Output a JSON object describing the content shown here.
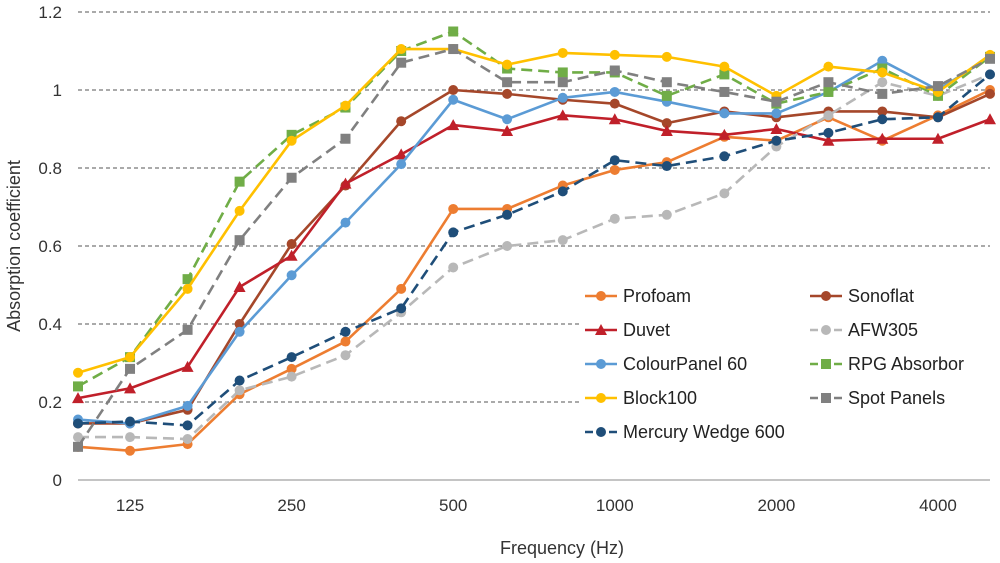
{
  "chart_data": {
    "type": "line",
    "xlabel": "Frequency (Hz)",
    "ylabel": "Absorption coefficient",
    "x_scale": "log",
    "x": [
      100,
      125,
      160,
      200,
      250,
      315,
      400,
      500,
      630,
      800,
      1000,
      1250,
      1600,
      2000,
      2500,
      3150,
      4000,
      5000
    ],
    "xticks": [
      125,
      250,
      500,
      1000,
      2000,
      4000
    ],
    "xtick_labels": [
      "125",
      "250",
      "500",
      "1000",
      "2000",
      "4000"
    ],
    "ylim": [
      0,
      1.2
    ],
    "yticks": [
      0,
      0.2,
      0.4,
      0.6,
      0.8,
      1,
      1.2
    ],
    "ytick_labels": [
      "0",
      "0.2",
      "0.4",
      "0.6",
      "0.8",
      "1",
      "1.2"
    ],
    "grid": "horizontal-dashed",
    "legend_position": "bottom-right",
    "series": [
      {
        "name": "Profoam",
        "color": "#ed7d31",
        "dash": "solid",
        "marker": "circle",
        "values": [
          0.085,
          0.075,
          0.092,
          0.22,
          0.285,
          0.355,
          0.49,
          0.695,
          0.695,
          0.755,
          0.795,
          0.815,
          0.88,
          0.87,
          0.93,
          0.87,
          0.935,
          1.0
        ]
      },
      {
        "name": "Sonoflat",
        "color": "#a5472a",
        "dash": "solid",
        "marker": "circle",
        "values": [
          0.145,
          0.145,
          0.18,
          0.4,
          0.605,
          0.755,
          0.92,
          1.0,
          0.99,
          0.975,
          0.965,
          0.915,
          0.945,
          0.93,
          0.945,
          0.945,
          0.93,
          0.99
        ]
      },
      {
        "name": "Duvet",
        "color": "#c0202a",
        "dash": "solid",
        "marker": "triangle",
        "values": [
          0.21,
          0.235,
          0.29,
          0.495,
          0.575,
          0.76,
          0.835,
          0.91,
          0.895,
          0.935,
          0.925,
          0.895,
          0.885,
          0.9,
          0.87,
          0.875,
          0.875,
          0.925
        ]
      },
      {
        "name": "AFW305",
        "color": "#b8b8b8",
        "dash": "dash",
        "marker": "circle",
        "values": [
          0.11,
          0.11,
          0.105,
          0.23,
          0.265,
          0.32,
          0.43,
          0.545,
          0.6,
          0.615,
          0.67,
          0.68,
          0.735,
          0.855,
          0.935,
          1.02,
          0.985,
          1.04
        ]
      },
      {
        "name": "ColourPanel 60",
        "color": "#5b9bd5",
        "dash": "solid",
        "marker": "circle",
        "values": [
          0.155,
          0.145,
          0.19,
          0.38,
          0.525,
          0.66,
          0.81,
          0.975,
          0.925,
          0.98,
          0.995,
          0.97,
          0.94,
          0.94,
          0.995,
          1.075,
          1.0,
          1.085
        ]
      },
      {
        "name": "RPG Absorbor",
        "color": "#70ad47",
        "dash": "dash",
        "marker": "square",
        "values": [
          0.24,
          0.315,
          0.515,
          0.765,
          0.885,
          0.955,
          1.1,
          1.15,
          1.055,
          1.045,
          1.045,
          0.985,
          1.04,
          0.965,
          0.995,
          1.055,
          0.985,
          1.085
        ]
      },
      {
        "name": "Block100",
        "color": "#ffc000",
        "dash": "solid",
        "marker": "circle",
        "values": [
          0.275,
          0.315,
          0.49,
          0.69,
          0.87,
          0.96,
          1.105,
          1.105,
          1.065,
          1.095,
          1.09,
          1.085,
          1.06,
          0.985,
          1.06,
          1.045,
          0.995,
          1.09
        ]
      },
      {
        "name": "Spot Panels",
        "color": "#808080",
        "dash": "dash",
        "marker": "square",
        "values": [
          0.085,
          0.285,
          0.385,
          0.615,
          0.775,
          0.875,
          1.07,
          1.105,
          1.02,
          1.02,
          1.05,
          1.02,
          0.995,
          0.97,
          1.02,
          0.99,
          1.01,
          1.08
        ]
      },
      {
        "name": "Mercury Wedge 600",
        "color": "#1f4e79",
        "dash": "dash",
        "marker": "circle",
        "values": [
          0.145,
          0.15,
          0.14,
          0.255,
          0.315,
          0.38,
          0.44,
          0.635,
          0.68,
          0.74,
          0.82,
          0.805,
          0.83,
          0.87,
          0.89,
          0.925,
          0.93,
          1.04
        ]
      }
    ]
  }
}
